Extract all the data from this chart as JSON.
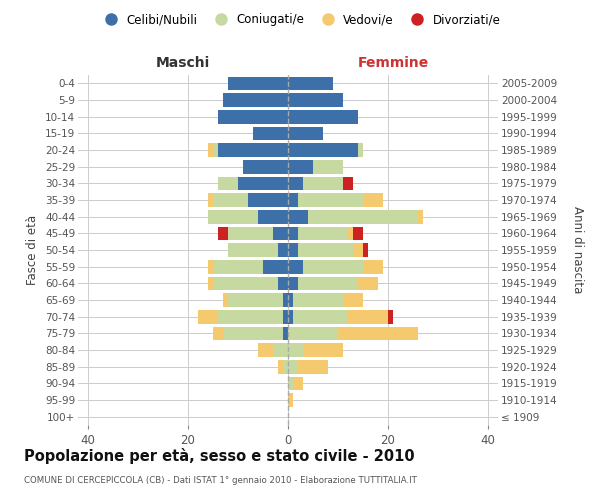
{
  "age_groups": [
    "100+",
    "95-99",
    "90-94",
    "85-89",
    "80-84",
    "75-79",
    "70-74",
    "65-69",
    "60-64",
    "55-59",
    "50-54",
    "45-49",
    "40-44",
    "35-39",
    "30-34",
    "25-29",
    "20-24",
    "15-19",
    "10-14",
    "5-9",
    "0-4"
  ],
  "birth_years": [
    "≤ 1909",
    "1910-1914",
    "1915-1919",
    "1920-1924",
    "1925-1929",
    "1930-1934",
    "1935-1939",
    "1940-1944",
    "1945-1949",
    "1950-1954",
    "1955-1959",
    "1960-1964",
    "1965-1969",
    "1970-1974",
    "1975-1979",
    "1980-1984",
    "1985-1989",
    "1990-1994",
    "1995-1999",
    "2000-2004",
    "2005-2009"
  ],
  "maschi": {
    "celibi": [
      0,
      0,
      0,
      0,
      0,
      1,
      1,
      1,
      2,
      5,
      2,
      3,
      6,
      8,
      10,
      9,
      14,
      7,
      14,
      13,
      12
    ],
    "coniugati": [
      0,
      0,
      0,
      1,
      3,
      12,
      13,
      11,
      13,
      10,
      10,
      9,
      10,
      7,
      4,
      0,
      1,
      0,
      0,
      0,
      0
    ],
    "vedovi": [
      0,
      0,
      0,
      1,
      3,
      2,
      4,
      1,
      1,
      1,
      0,
      0,
      0,
      1,
      0,
      0,
      1,
      0,
      0,
      0,
      0
    ],
    "divorziati": [
      0,
      0,
      0,
      0,
      0,
      0,
      0,
      0,
      0,
      0,
      0,
      2,
      0,
      0,
      0,
      0,
      0,
      0,
      0,
      0,
      0
    ]
  },
  "femmine": {
    "nubili": [
      0,
      0,
      0,
      0,
      0,
      0,
      1,
      1,
      2,
      3,
      2,
      2,
      4,
      2,
      3,
      5,
      14,
      7,
      14,
      11,
      9
    ],
    "coniugate": [
      0,
      0,
      1,
      2,
      3,
      10,
      11,
      10,
      12,
      12,
      11,
      10,
      22,
      13,
      8,
      6,
      1,
      0,
      0,
      0,
      0
    ],
    "vedove": [
      0,
      1,
      2,
      6,
      8,
      16,
      8,
      4,
      4,
      4,
      2,
      1,
      1,
      4,
      0,
      0,
      0,
      0,
      0,
      0,
      0
    ],
    "divorziate": [
      0,
      0,
      0,
      0,
      0,
      0,
      1,
      0,
      0,
      0,
      1,
      2,
      0,
      0,
      2,
      0,
      0,
      0,
      0,
      0,
      0
    ]
  },
  "colors": {
    "celibi_nubili": "#3d6fa8",
    "coniugati": "#c5d9a0",
    "vedovi": "#f5c96e",
    "divorziati": "#cc2222"
  },
  "title": "Popolazione per età, sesso e stato civile - 2010",
  "subtitle": "COMUNE DI CERCEPICCOLA (CB) - Dati ISTAT 1° gennaio 2010 - Elaborazione TUTTITALIA.IT",
  "maschi_label": "Maschi",
  "femmine_label": "Femmine",
  "ylabel_left": "Fasce di età",
  "ylabel_right": "Anni di nascita",
  "xlim": 42,
  "xtick_labels": [
    "40",
    "20",
    "0",
    "20",
    "40"
  ],
  "xtick_vals": [
    -40,
    -20,
    0,
    20,
    40
  ],
  "legend_labels": [
    "Celibi/Nubili",
    "Coniugati/e",
    "Vedovi/e",
    "Divorziati/e"
  ],
  "bg_color": "#ffffff",
  "grid_color": "#cccccc"
}
